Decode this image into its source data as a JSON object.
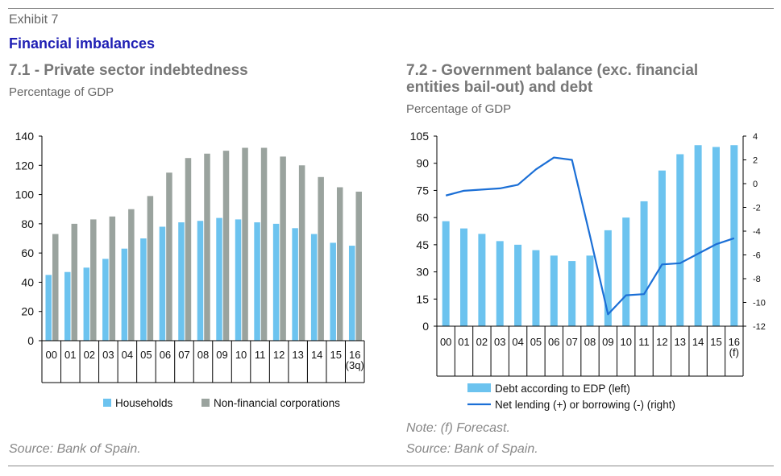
{
  "header": {
    "exhibit": "Exhibit 7",
    "title": "Financial imbalances"
  },
  "colors": {
    "households": "#6cc3ef",
    "nfc": "#9aa39e",
    "debt": "#6cc3ef",
    "lending": "#1b6fd6",
    "title_blue": "#1f1fb4"
  },
  "left": {
    "subtitle": "7.1 -  Private sector indebtedness",
    "unit": "Percentage of GDP",
    "source": "Source: Bank of Spain."
  },
  "right": {
    "subtitle_line1": "7.2 -  Government balance (exc. financial",
    "subtitle_line2": "entities bail-out) and debt",
    "unit": "Percentage of GDP",
    "note": "Note: (f) Forecast.",
    "source": "Source: Bank of Spain."
  },
  "chart_data": [
    {
      "type": "bar",
      "categories": [
        "00",
        "01",
        "02",
        "03",
        "04",
        "05",
        "06",
        "07",
        "08",
        "09",
        "10",
        "11",
        "12",
        "13",
        "14",
        "15",
        "16\n(3q)"
      ],
      "series": [
        {
          "name": "Households",
          "values": [
            45,
            47,
            50,
            56,
            63,
            70,
            78,
            81,
            82,
            84,
            83,
            81,
            80,
            77,
            73,
            67,
            65
          ]
        },
        {
          "name": "Non-financial corporations",
          "values": [
            73,
            80,
            83,
            85,
            90,
            99,
            115,
            125,
            128,
            130,
            132,
            132,
            126,
            120,
            112,
            105,
            102
          ]
        }
      ],
      "ylim": [
        0,
        140
      ],
      "yticks": [
        0,
        20,
        40,
        60,
        80,
        100,
        120,
        140
      ],
      "legend": "bottom",
      "grid": false
    },
    {
      "type": "bar",
      "categories": [
        "00",
        "01",
        "02",
        "03",
        "04",
        "05",
        "06",
        "07",
        "08",
        "09",
        "10",
        "11",
        "12",
        "13",
        "14",
        "15",
        "16\n(f)"
      ],
      "series": [
        {
          "name": "Debt according to EDP (left)",
          "axis": "left",
          "type": "bar",
          "values": [
            58,
            54,
            51,
            47,
            45,
            42,
            39,
            36,
            39,
            53,
            60,
            69,
            86,
            95,
            100,
            99,
            100
          ]
        },
        {
          "name": "Net lending (+) or borrowing (-) (right)",
          "axis": "right",
          "type": "line",
          "values": [
            -1.0,
            -0.6,
            -0.5,
            -0.4,
            -0.1,
            1.2,
            2.2,
            2.0,
            -4.4,
            -11.0,
            -9.4,
            -9.3,
            -6.8,
            -6.7,
            -5.9,
            -5.1,
            -4.6
          ]
        }
      ],
      "ylim_left": [
        0,
        105
      ],
      "yticks_left": [
        0,
        15,
        30,
        45,
        60,
        75,
        90,
        105
      ],
      "ylim_right": [
        -12,
        4
      ],
      "yticks_right": [
        4,
        2,
        0,
        -2,
        -4,
        -6,
        -8,
        -10,
        -12
      ],
      "legend": "bottom",
      "grid": false
    }
  ]
}
